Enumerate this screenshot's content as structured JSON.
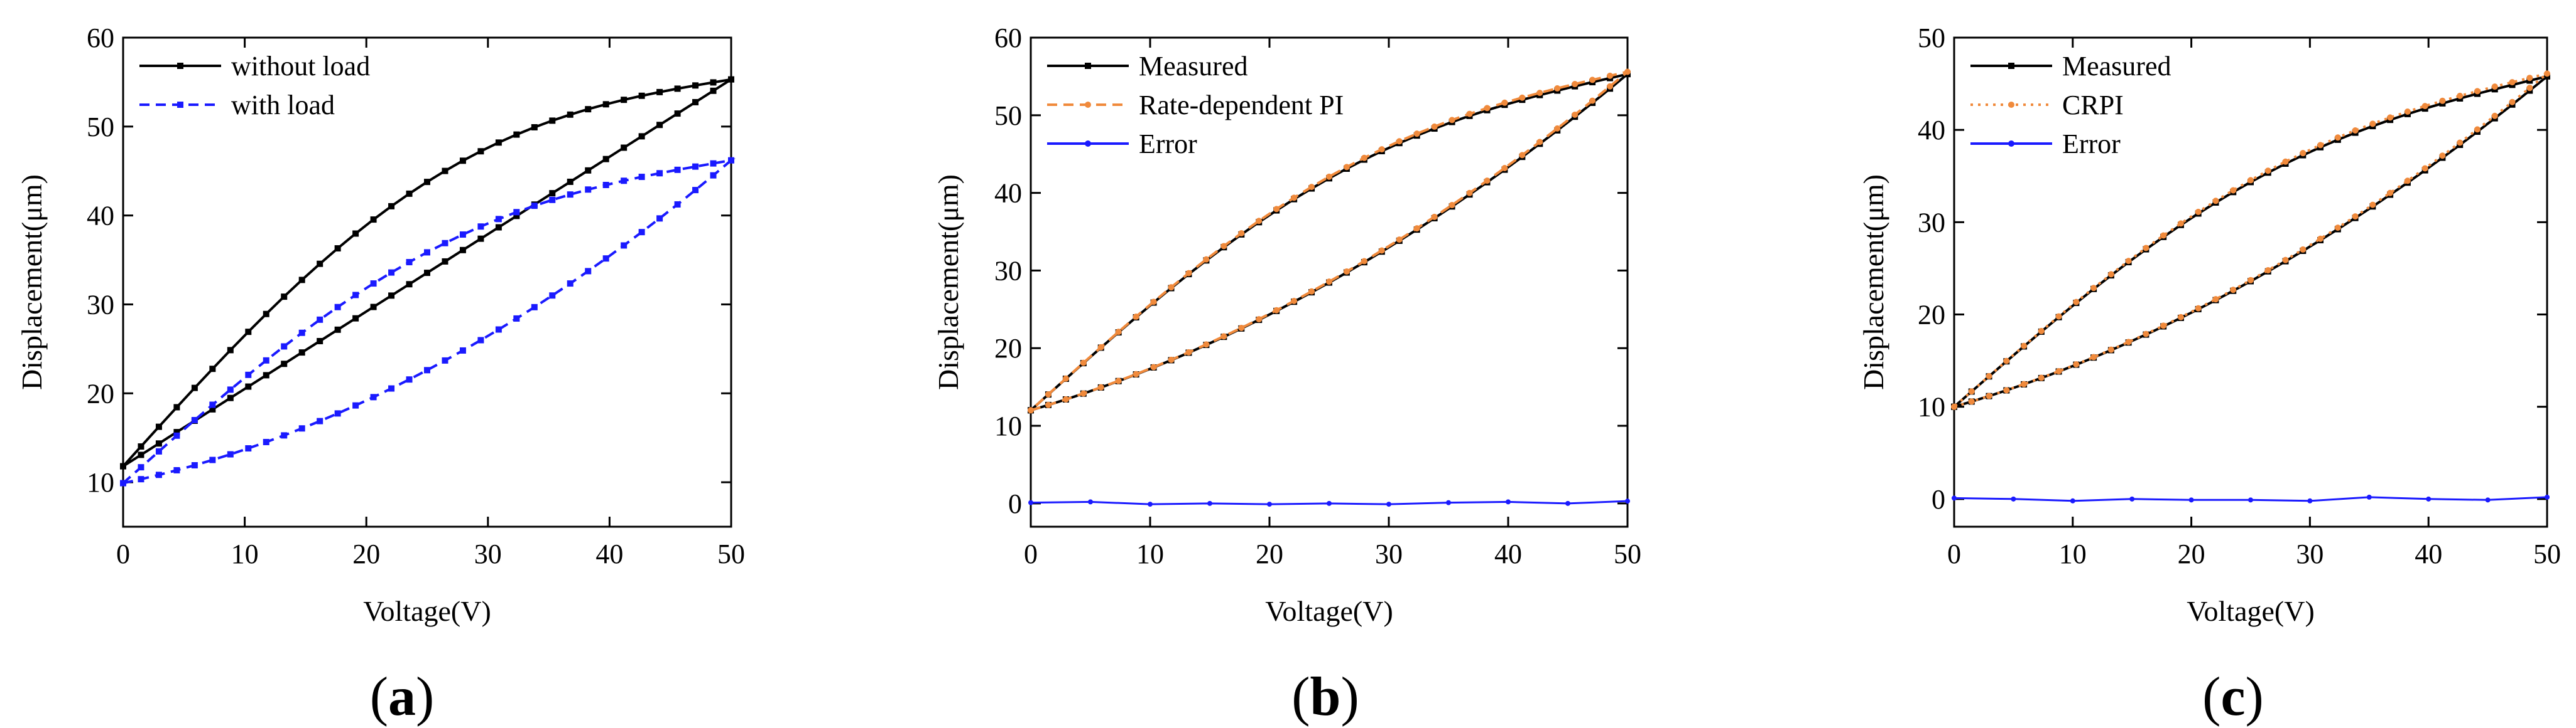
{
  "figure": {
    "panels": [
      {
        "caption": "(a)",
        "caption_letter": "a",
        "xlabel": "Voltage(V)",
        "ylabel": "Displacement(μm)"
      },
      {
        "caption": "(b)",
        "caption_letter": "b",
        "xlabel": "Voltage(V)",
        "ylabel": "Displacement(μm)"
      },
      {
        "caption": "(c)",
        "caption_letter": "c",
        "xlabel": "Voltage(V)",
        "ylabel": "Displacement(μm)"
      }
    ]
  },
  "chart_data": [
    {
      "type": "line",
      "panel": "a",
      "title": "",
      "xlabel": "Voltage(V)",
      "ylabel": "Displacement(μm)",
      "xlim": [
        0,
        50
      ],
      "ylim": [
        5,
        60
      ],
      "xticks": [
        0,
        10,
        20,
        30,
        40,
        50
      ],
      "yticks": [
        10,
        20,
        30,
        40,
        50,
        60
      ],
      "legend": "top-left",
      "series": [
        {
          "name": "without load",
          "color": "#000000",
          "dash": "solid",
          "marker": "square",
          "loop": {
            "x0": 0,
            "x1": 50,
            "y0": 11.8,
            "y1": 55.3,
            "asc_curvature": 0.0,
            "desc_curvature": 0.47,
            "asc_shape": "sine",
            "points_per_branch": 34
          }
        },
        {
          "name": "with load",
          "color": "#1a1aff",
          "dash": "dashed",
          "marker": "square",
          "loop": {
            "x0": 0,
            "x1": 50,
            "y0": 9.9,
            "y1": 46.2,
            "asc_curvature": -0.3,
            "desc_curvature": 0.43,
            "asc_shape": "parabola",
            "points_per_branch": 34
          }
        }
      ]
    },
    {
      "type": "line",
      "panel": "b",
      "title": "",
      "xlabel": "Voltage(V)",
      "ylabel": "Displacement(μm)",
      "xlim": [
        0,
        50
      ],
      "ylim": [
        -3,
        60
      ],
      "xticks": [
        0,
        10,
        20,
        30,
        40,
        50
      ],
      "yticks": [
        0,
        10,
        20,
        30,
        40,
        50,
        60
      ],
      "legend": "top-left",
      "series": [
        {
          "name": "Measured",
          "color": "#000000",
          "dash": "solid",
          "marker": "square",
          "loop": {
            "x0": 0,
            "x1": 50,
            "y0": 12.0,
            "y1": 55.3,
            "asc_curvature": -0.24,
            "desc_curvature": 0.38,
            "asc_shape": "parabola",
            "points_per_branch": 34
          }
        },
        {
          "name": "Rate-dependent PI",
          "color": "#f08a3c",
          "dash": "dashed",
          "marker": "dot",
          "loop": {
            "x0": 0,
            "x1": 50,
            "y0": 12.0,
            "y1": 55.6,
            "asc_curvature": -0.24,
            "desc_curvature": 0.38,
            "asc_shape": "parabola",
            "points_per_branch": 34
          }
        },
        {
          "name": "Error",
          "color": "#1a1aff",
          "dash": "solid",
          "marker": "small",
          "x": [
            0,
            5,
            10,
            15,
            20,
            25,
            30,
            35,
            40,
            45,
            50
          ],
          "y": [
            0.1,
            0.2,
            -0.1,
            0.0,
            -0.1,
            0.0,
            -0.1,
            0.1,
            0.2,
            0.0,
            0.3
          ]
        }
      ]
    },
    {
      "type": "line",
      "panel": "c",
      "title": "",
      "xlabel": "Voltage(V)",
      "ylabel": "Displacement(μm)",
      "xlim": [
        0,
        50
      ],
      "ylim": [
        -3,
        50
      ],
      "xticks": [
        0,
        10,
        20,
        30,
        40,
        50
      ],
      "yticks": [
        0,
        10,
        20,
        30,
        40,
        50
      ],
      "legend": "top-left",
      "series": [
        {
          "name": "Measured",
          "color": "#000000",
          "dash": "solid",
          "marker": "square",
          "loop": {
            "x0": 0,
            "x1": 50,
            "y0": 10.0,
            "y1": 45.8,
            "asc_curvature": -0.24,
            "desc_curvature": 0.36,
            "asc_shape": "parabola",
            "points_per_branch": 34
          }
        },
        {
          "name": "CRPI",
          "color": "#f08a3c",
          "dash": "dotted",
          "marker": "dot",
          "loop": {
            "x0": 0,
            "x1": 50,
            "y0": 10.0,
            "y1": 46.1,
            "asc_curvature": -0.24,
            "desc_curvature": 0.36,
            "asc_shape": "parabola",
            "points_per_branch": 34
          }
        },
        {
          "name": "Error",
          "color": "#1a1aff",
          "dash": "solid",
          "marker": "small",
          "x": [
            0,
            5,
            10,
            15,
            20,
            25,
            30,
            35,
            40,
            45,
            50
          ],
          "y": [
            0.1,
            0.0,
            -0.2,
            0.0,
            -0.1,
            -0.1,
            -0.2,
            0.2,
            0.0,
            -0.1,
            0.2
          ]
        }
      ]
    }
  ]
}
